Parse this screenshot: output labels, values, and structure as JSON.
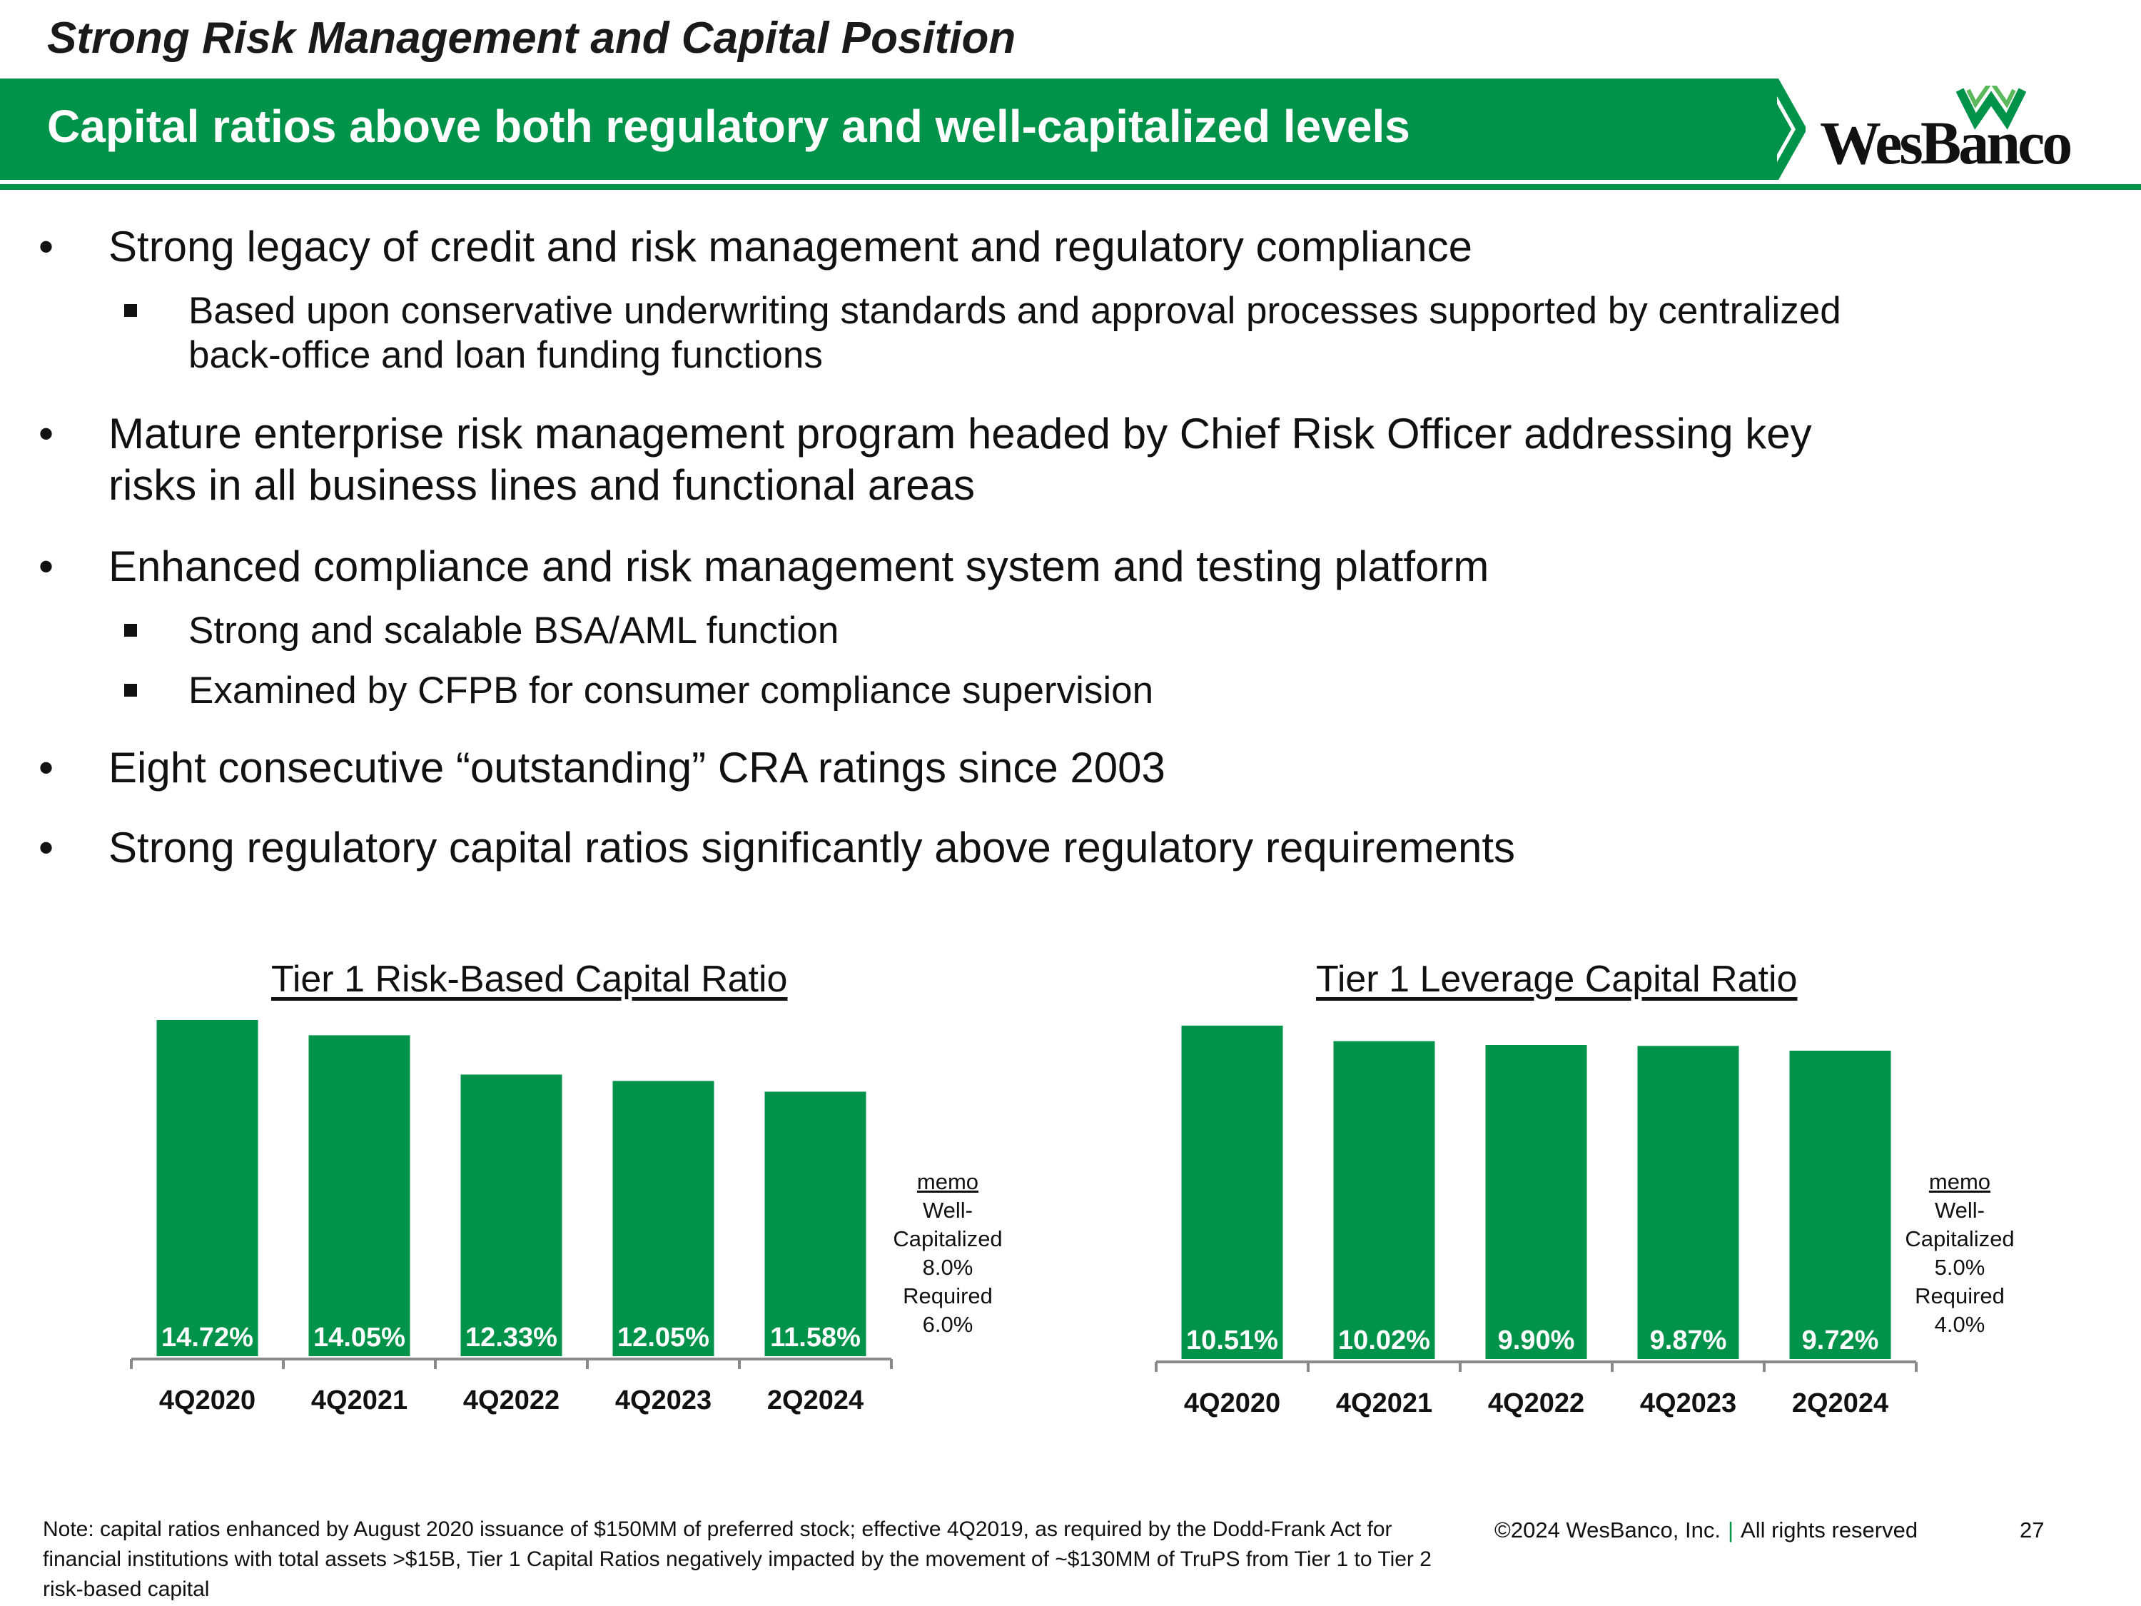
{
  "header": {
    "subtitle": "Strong Risk Management and Capital Position",
    "banner_title": "Capital ratios above both regulatory and well-capitalized levels",
    "logo_text": "WesBanco",
    "accent_color": "#02934a"
  },
  "bullets": [
    {
      "text": "Strong legacy of credit and risk management and regulatory compliance",
      "subs": [
        "Based upon conservative underwriting standards and approval processes supported by centralized",
        "back-office and loan funding functions"
      ]
    },
    {
      "text": "Mature enterprise risk management program headed by Chief Risk Officer addressing key",
      "text2": "risks in all business lines and functional areas"
    },
    {
      "text": "Enhanced compliance and risk management system and testing platform",
      "subs": [
        "Strong and scalable BSA/AML function",
        "Examined by CFPB for consumer compliance supervision"
      ]
    },
    {
      "text": "Eight consecutive “outstanding” CRA ratings since 2003"
    },
    {
      "text": "Strong regulatory capital ratios significantly above regulatory requirements"
    }
  ],
  "chart_data": [
    {
      "type": "bar",
      "title": "Tier 1 Risk-Based Capital Ratio",
      "categories": [
        "4Q2020",
        "4Q2021",
        "4Q2022",
        "4Q2023",
        "2Q2024"
      ],
      "values": [
        14.72,
        14.05,
        12.33,
        12.05,
        11.58
      ],
      "value_labels": [
        "14.72%",
        "14.05%",
        "12.33%",
        "12.05%",
        "11.58%"
      ],
      "ylim": [
        0,
        15
      ],
      "memo": {
        "heading": "memo",
        "line1": "Well-",
        "line2": "Capitalized",
        "well_capitalized": "8.0%",
        "line3": "Required",
        "required": "6.0%"
      }
    },
    {
      "type": "bar",
      "title": "Tier 1 Leverage Capital Ratio",
      "categories": [
        "4Q2020",
        "4Q2021",
        "4Q2022",
        "4Q2023",
        "2Q2024"
      ],
      "values": [
        10.51,
        10.02,
        9.9,
        9.87,
        9.72
      ],
      "value_labels": [
        "10.51%",
        "10.02%",
        "9.90%",
        "9.87%",
        "9.72%"
      ],
      "ylim": [
        0,
        10.8
      ],
      "memo": {
        "heading": "memo",
        "line1": "Well-",
        "line2": "Capitalized",
        "well_capitalized": "5.0%",
        "line3": "Required",
        "required": "4.0%"
      }
    }
  ],
  "footer": {
    "note": "Note: capital ratios enhanced by August 2020 issuance of $150MM of preferred stock; effective 4Q2019, as required by the Dodd-Frank Act for financial institutions with total assets >$15B, Tier 1 Capital Ratios negatively impacted by the movement of ~$130MM of TruPS from Tier 1 to Tier 2 risk-based capital",
    "copyright": "©2024 WesBanco, Inc.",
    "separator": "|",
    "rights": "All rights reserved",
    "page_number": "27"
  }
}
